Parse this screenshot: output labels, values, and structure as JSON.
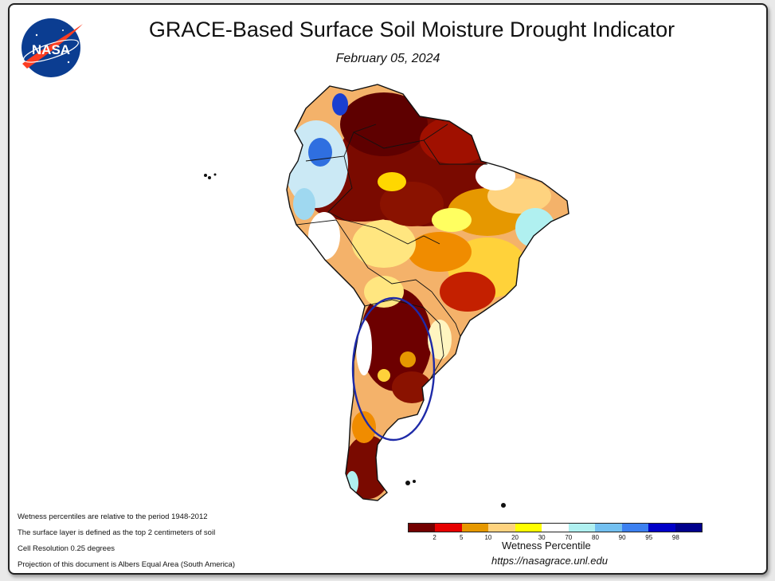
{
  "header": {
    "title": "GRACE-Based Surface Soil Moisture Drought Indicator",
    "date": "February 05, 2024",
    "logo_text": "NASA"
  },
  "notes": [
    "Wetness percentiles are relative to the period 1948-2012",
    "The surface layer is defined as the top 2 centimeters of soil",
    "Cell Resolution 0.25 degrees",
    "Projection of this document is Albers Equal Area (South America)"
  ],
  "legend": {
    "title": "Wetness Percentile",
    "ticks": [
      "2",
      "5",
      "10",
      "20",
      "30",
      "70",
      "80",
      "90",
      "95",
      "98"
    ],
    "colors": [
      "#730000",
      "#e60000",
      "#e69800",
      "#fed37f",
      "#ffff00",
      "#ffffff",
      "#b0f0f0",
      "#73c0f0",
      "#3c80f0",
      "#0000c8",
      "#00008c"
    ]
  },
  "footer": {
    "url": "https://nasagrace.unl.edu"
  },
  "map": {
    "region": "South America",
    "highlight": "circled region: central-northern Argentina"
  }
}
